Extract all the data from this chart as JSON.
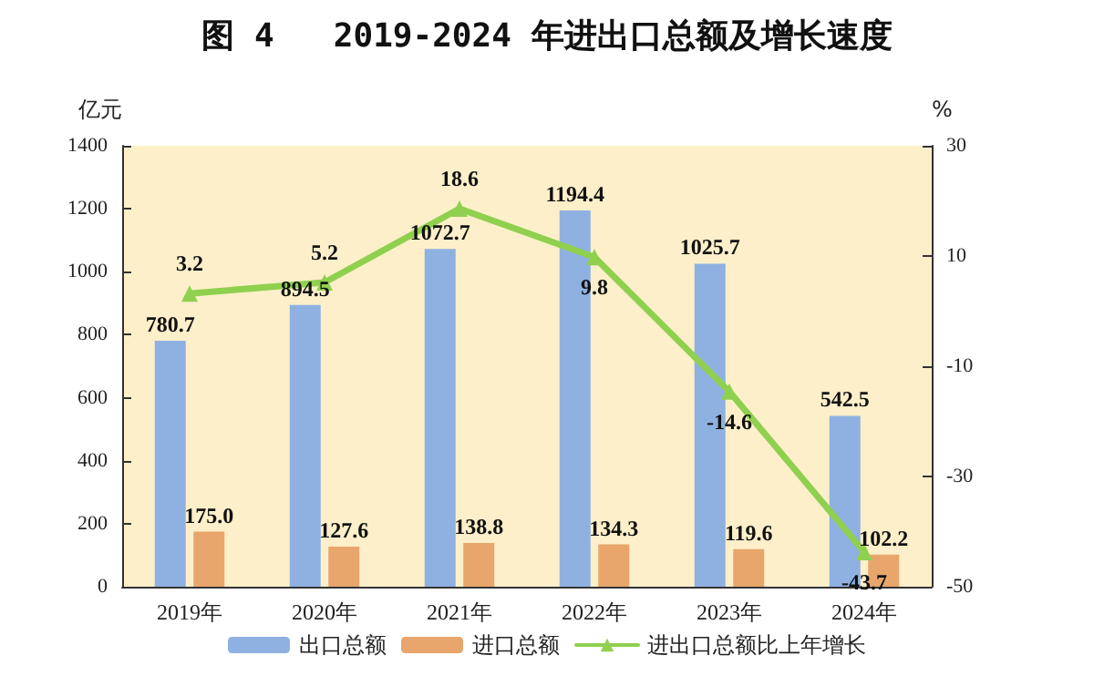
{
  "chart_data": {
    "type": "bar",
    "title": "图 4   2019-2024 年进出口总额及增长速度",
    "ylabel": "亿元",
    "y2label": "%",
    "categories": [
      "2019年",
      "2020年",
      "2021年",
      "2022年",
      "2023年",
      "2024年"
    ],
    "series": [
      {
        "name": "出口总额",
        "color": "#8eb1e1",
        "values": [
          780.7,
          894.5,
          1072.7,
          1194.4,
          1025.7,
          542.5
        ],
        "value_labels": [
          "780.7",
          "894.5",
          "1072.7",
          "1194.4",
          "1025.7",
          "542.5"
        ]
      },
      {
        "name": "进口总额",
        "color": "#e8a66c",
        "values": [
          175.0,
          127.6,
          138.8,
          134.3,
          119.6,
          102.2
        ],
        "value_labels": [
          "175.0",
          "127.6",
          "138.8",
          "134.3",
          "119.6",
          "102.2"
        ]
      },
      {
        "name": "进出口总额比上年增长",
        "type": "line",
        "axis": "y2",
        "color": "#8fd04f",
        "values": [
          3.2,
          5.2,
          18.6,
          9.8,
          -14.6,
          -43.7
        ],
        "value_labels": [
          "3.2",
          "5.2",
          "18.6",
          "9.8",
          "-14.6",
          "-43.7"
        ]
      }
    ],
    "ylim": [
      0,
      1400
    ],
    "yticks": [
      0,
      200,
      400,
      600,
      800,
      1000,
      1200,
      1400
    ],
    "y2lim": [
      -50,
      30
    ],
    "y2ticks": [
      -50,
      -30,
      -10,
      10,
      30
    ],
    "grid": false,
    "legend": "bottom",
    "marker": "triangle",
    "line_style": "solid"
  }
}
